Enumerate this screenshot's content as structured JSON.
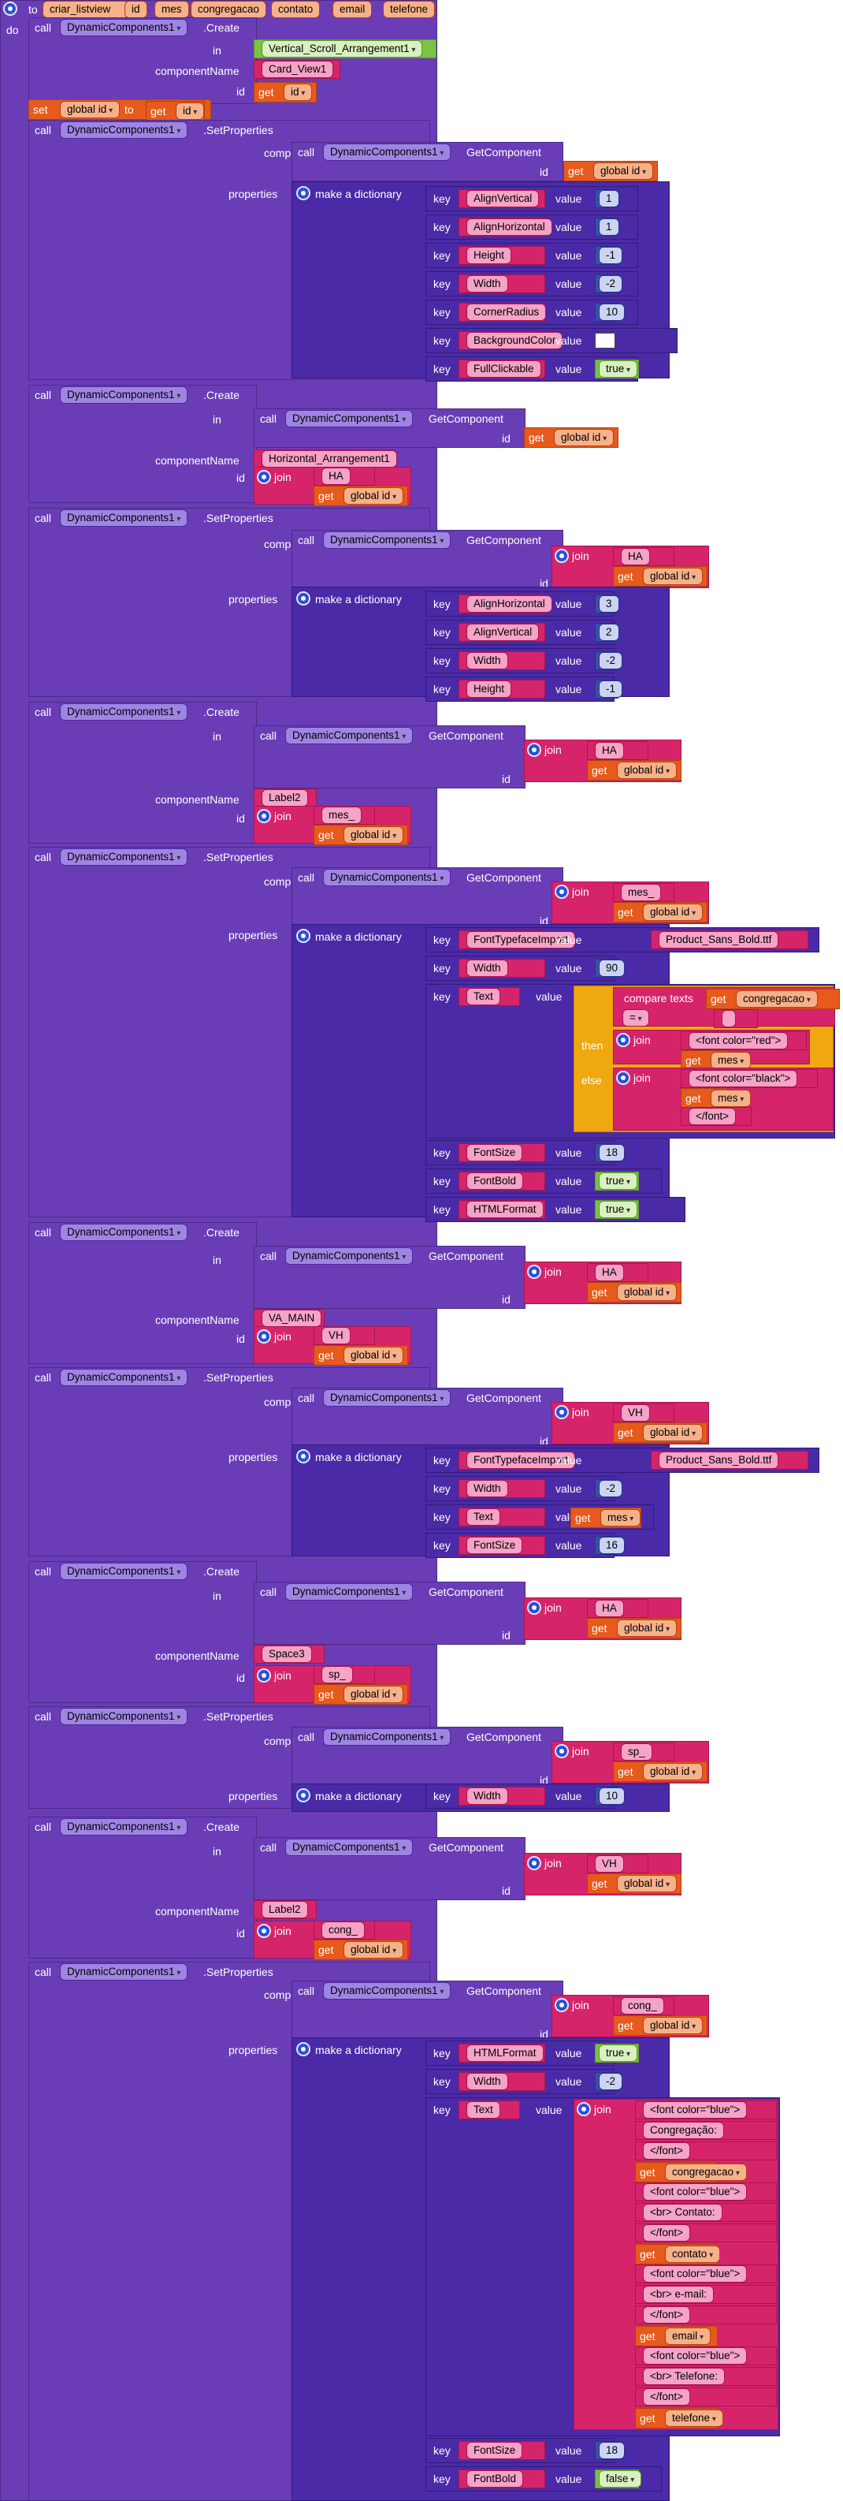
{
  "proc": {
    "to": "to",
    "name": "criar_listview",
    "params": [
      "id",
      "mes",
      "congregacao",
      "contato",
      "email",
      "telefone"
    ],
    "do": "do"
  },
  "kw": {
    "call": "call",
    "create": ".Create",
    "setprops": ".SetProperties",
    "getcomp": "GetComponent",
    "in": "in",
    "componentName": "componentName",
    "id": "id",
    "component": "component",
    "properties": "properties",
    "make_dict": "make a dictionary",
    "key": "key",
    "value": "value",
    "get": "get",
    "set": "set",
    "to": "to",
    "join": "join",
    "if": "if",
    "then": "then",
    "else": "else",
    "compare": "compare texts",
    "eq": "="
  },
  "comp": "DynamicComponents1",
  "global_id": "global id",
  "s1": {
    "in": "Vertical_Scroll_Arrangement1",
    "name": "Card_View1",
    "keys": [
      "AlignVertical",
      "AlignHorizontal",
      "Height",
      "Width",
      "CornerRadius",
      "BackgroundColor",
      "FullClickable"
    ],
    "vals": [
      "1",
      "1",
      "-1",
      "-2",
      "10",
      "",
      "true"
    ]
  },
  "s2": {
    "name": "Horizontal_Arrangement1",
    "id": "HA"
  },
  "s3": {
    "keys": [
      "AlignHorizontal",
      "AlignVertical",
      "Width",
      "Height"
    ],
    "vals": [
      "3",
      "2",
      "-2",
      "-1"
    ]
  },
  "s4": {
    "in_id": "HA",
    "name": "Label2",
    "id": "mes_"
  },
  "s5": {
    "keys": [
      "FontTypefaceImport",
      "Width",
      "Text",
      "FontSize",
      "FontBold",
      "HTMLFormat"
    ],
    "vals": [
      "Product_Sans_Bold.ttf",
      "90",
      "",
      "18",
      "true",
      "true"
    ],
    "cmp_val": "",
    "red": "<font color=\"red\">",
    "black": "<font color=\"black\">",
    "close": "</font>"
  },
  "s6": {
    "in_id": "HA",
    "name": "VA_MAIN",
    "id": "VH"
  },
  "s7": {
    "keys": [
      "FontTypefaceImport",
      "Width",
      "Text",
      "FontSize"
    ],
    "vals": [
      "Product_Sans_Bold.ttf",
      "-2",
      "",
      "16"
    ]
  },
  "s8": {
    "in_id": "HA",
    "name": "Space3",
    "id": "sp_"
  },
  "s9": {
    "keys": [
      "Width"
    ],
    "vals": [
      "10"
    ]
  },
  "s10": {
    "in_id": "VH",
    "name": "Label2",
    "id": "cong_"
  },
  "s11": {
    "keys": [
      "HTMLFormat",
      "Width",
      "Text",
      "FontSize",
      "FontBold"
    ],
    "vals": [
      "true",
      "-2",
      "",
      "18",
      "false"
    ],
    "join": [
      "<font color=\"blue\">",
      "Congregação:",
      "</font>",
      "congregacao",
      "<font color=\"blue\">",
      "<br> Contato:",
      "</font>",
      "contato",
      "<font color=\"blue\">",
      "<br> e-mail:",
      "</font>",
      "email",
      "<font color=\"blue\">",
      "<br> Telefone:",
      "</font>",
      "telefone"
    ]
  }
}
